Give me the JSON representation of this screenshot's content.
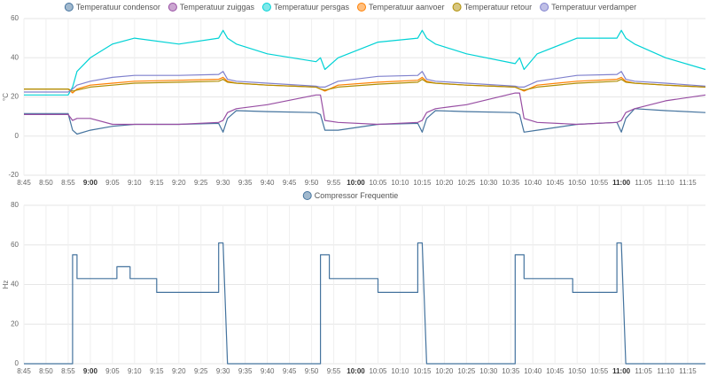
{
  "chart_data": [
    {
      "type": "line",
      "ylabel": "°C",
      "x": [
        "8:45",
        "8:55",
        "8:56",
        "8:57",
        "9:00",
        "9:05",
        "9:10",
        "9:20",
        "9:29",
        "9:30",
        "9:31",
        "9:33",
        "9:40",
        "9:51",
        "9:52",
        "9:53",
        "9:56",
        "10:05",
        "10:14",
        "10:15",
        "10:16",
        "10:18",
        "10:25",
        "10:36",
        "10:37",
        "10:38",
        "10:41",
        "10:50",
        "10:59",
        "11:00",
        "11:01",
        "11:03",
        "11:10",
        "11:19"
      ],
      "xlim": [
        "8:45",
        "11:19"
      ],
      "xticks": [
        "8:45",
        "8:50",
        "8:55",
        "9:00",
        "9:05",
        "9:10",
        "9:15",
        "9:20",
        "9:25",
        "9:30",
        "9:35",
        "9:40",
        "9:45",
        "9:50",
        "9:55",
        "10:00",
        "10:05",
        "10:10",
        "10:15",
        "10:20",
        "10:25",
        "10:30",
        "10:35",
        "10:40",
        "10:45",
        "10:50",
        "10:55",
        "11:00",
        "11:05",
        "11:10",
        "11:15"
      ],
      "ylim": [
        -20,
        60
      ],
      "yticks": [
        -20,
        0,
        20,
        40,
        60
      ],
      "grid": true,
      "series": [
        {
          "name": "Temperatuur condensor",
          "color": "#44739e",
          "values": [
            11.5,
            11.5,
            3,
            1,
            3,
            5,
            6,
            6,
            6.5,
            2,
            9,
            13,
            12.5,
            12,
            11,
            3,
            3,
            6,
            6.5,
            2,
            9,
            13,
            12.5,
            12,
            11,
            2,
            3,
            6,
            7,
            2,
            9,
            14,
            13,
            12
          ]
        },
        {
          "name": "Temperatuur zuiggas",
          "color": "#984ea3",
          "values": [
            11,
            11,
            8,
            9,
            9,
            6,
            6,
            6,
            7,
            8,
            12,
            14,
            16,
            21,
            21,
            8,
            7,
            6,
            7,
            8,
            12,
            14,
            16,
            22,
            22,
            9,
            7,
            6,
            7,
            8,
            12,
            14,
            18,
            21
          ]
        },
        {
          "name": "Temperatuur persgas",
          "color": "#00d2d5",
          "values": [
            21,
            21,
            25,
            33,
            40,
            47,
            50,
            47,
            50,
            54,
            50,
            47,
            42,
            38,
            40,
            34,
            40,
            48,
            50,
            54,
            50,
            47,
            42,
            37,
            40,
            34,
            42,
            50,
            50,
            54,
            50,
            47,
            40,
            34
          ]
        },
        {
          "name": "Temperatuur aanvoer",
          "color": "#ff7f00",
          "values": [
            24,
            24,
            22,
            24,
            26,
            27,
            28,
            28.5,
            29,
            30,
            28,
            27,
            26,
            25,
            24,
            23,
            26,
            27.5,
            28.5,
            30,
            28,
            27,
            26,
            25,
            24,
            23,
            26,
            28,
            29,
            30,
            28,
            27,
            26,
            25
          ]
        },
        {
          "name": "Temperatuur retour",
          "color": "#af8d00",
          "values": [
            24,
            24,
            23,
            23.5,
            25,
            26,
            27,
            27.5,
            28,
            29,
            27.5,
            27,
            26,
            25,
            24,
            23.5,
            25,
            26.5,
            27.5,
            29,
            27.5,
            27,
            26,
            25,
            24,
            23.5,
            25,
            27,
            28,
            29,
            27.5,
            27,
            26,
            25
          ]
        },
        {
          "name": "Temperatuur verdamper",
          "color": "#7f80cd",
          "values": [
            22.5,
            22.5,
            24,
            26,
            28,
            30,
            31,
            31,
            31.5,
            33,
            29,
            28,
            27,
            25.5,
            25,
            25,
            28,
            30.5,
            31,
            33,
            29,
            28,
            27,
            25.5,
            25,
            25,
            28,
            31,
            31.5,
            33,
            29,
            28,
            27,
            25.5
          ]
        }
      ]
    },
    {
      "type": "line",
      "ylabel": "Hz",
      "x": [
        "8:45",
        "8:56",
        "8:56",
        "8:57",
        "8:57",
        "9:06",
        "9:06",
        "9:09",
        "9:09",
        "9:15",
        "9:15",
        "9:29",
        "9:29",
        "9:30",
        "9:31",
        "9:52",
        "9:52",
        "9:54",
        "9:54",
        "10:05",
        "10:05",
        "10:14",
        "10:14",
        "10:15",
        "10:16",
        "10:36",
        "10:36",
        "10:38",
        "10:38",
        "10:49",
        "10:49",
        "10:59",
        "10:59",
        "11:00",
        "11:01",
        "11:19"
      ],
      "xlim": [
        "8:45",
        "11:19"
      ],
      "xticks": [
        "8:45",
        "8:50",
        "8:55",
        "9:00",
        "9:05",
        "9:10",
        "9:15",
        "9:20",
        "9:25",
        "9:30",
        "9:35",
        "9:40",
        "9:45",
        "9:50",
        "9:55",
        "10:00",
        "10:05",
        "10:10",
        "10:15",
        "10:20",
        "10:25",
        "10:30",
        "10:35",
        "10:40",
        "10:45",
        "10:50",
        "10:55",
        "11:00",
        "11:05",
        "11:10",
        "11:15"
      ],
      "ylim": [
        0,
        80
      ],
      "yticks": [
        0,
        20,
        40,
        60,
        80
      ],
      "grid": true,
      "series": [
        {
          "name": "Compressor Frequentie",
          "color": "#44739e",
          "values": [
            0,
            0,
            55,
            55,
            43,
            43,
            49,
            49,
            43,
            43,
            36,
            36,
            61,
            61,
            0,
            0,
            55,
            55,
            43,
            43,
            36,
            36,
            61,
            61,
            0,
            0,
            55,
            55,
            43,
            43,
            36,
            36,
            61,
            61,
            0,
            0
          ]
        }
      ]
    }
  ]
}
